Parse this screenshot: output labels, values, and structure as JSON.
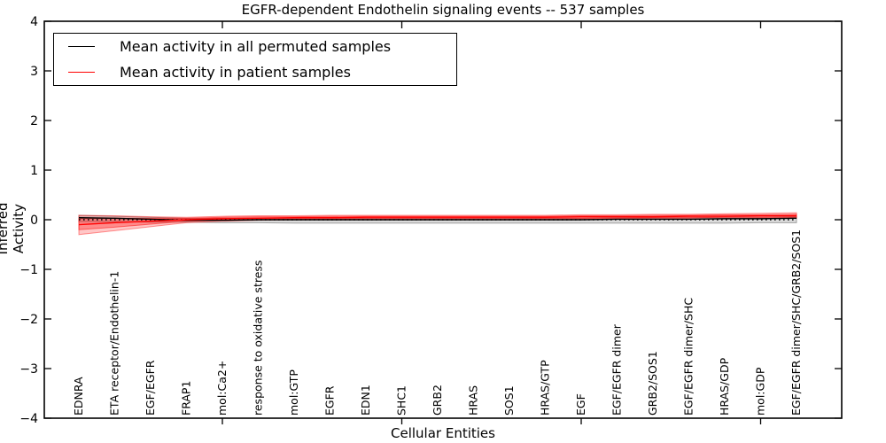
{
  "figure": {
    "title": "EGFR-dependent Endothelin signaling events -- 537 samples",
    "sample_count_shown_in_title": 537
  },
  "chart_data": {
    "type": "line",
    "title": "EGFR-dependent Endothelin signaling events -- 537 samples",
    "xlabel": "Cellular Entities",
    "ylabel": "Inferred Activity",
    "ylim": [
      -4,
      4
    ],
    "grid": false,
    "legend_position": "upper left",
    "ytick_values": [
      4,
      3,
      2,
      1,
      0,
      -1,
      -2,
      -3,
      -4
    ],
    "ytick_labels": [
      "4",
      "3",
      "2",
      "1",
      "0",
      "−1",
      "−2",
      "−3",
      "−4"
    ],
    "x_major_tick_indices": [
      4,
      9,
      14,
      19
    ],
    "categories": [
      "EDNRA",
      "ETA receptor/Endothelin-1",
      "EGF/EGFR",
      "FRAP1",
      "mol:Ca2+",
      "response to oxidative stress",
      "mol:GTP",
      "EGFR",
      "EDN1",
      "SHC1",
      "GRB2",
      "HRAS",
      "SOS1",
      "HRAS/GTP",
      "EGF",
      "EGF/EGFR dimer",
      "GRB2/SOS1",
      "EGF/EGFR dimer/SHC",
      "HRAS/GDP",
      "mol:GDP",
      "EGF/EGFR dimer/SHC/GRB2/SOS1"
    ],
    "series": [
      {
        "name": "Mean activity in all permuted samples",
        "color": "#000000",
        "values": [
          0.04,
          0.03,
          0.01,
          -0.01,
          -0.01,
          0.0,
          0.0,
          0.0,
          0.0,
          0.0,
          0.0,
          0.0,
          0.0,
          0.0,
          0.0,
          0.01,
          0.01,
          0.01,
          0.02,
          0.02,
          0.03
        ]
      },
      {
        "name": "Mean activity in patient samples",
        "color": "#ff0000",
        "values": [
          -0.1,
          -0.06,
          -0.03,
          0.0,
          0.02,
          0.03,
          0.04,
          0.04,
          0.05,
          0.05,
          0.05,
          0.05,
          0.05,
          0.05,
          0.06,
          0.06,
          0.06,
          0.07,
          0.07,
          0.08,
          0.08
        ]
      }
    ],
    "bands": [
      {
        "name": "permuted-samples-confidence",
        "color": "#000000",
        "opacity": 0.14,
        "upper": [
          0.09,
          0.07,
          0.05,
          0.03,
          0.03,
          0.03,
          0.03,
          0.03,
          0.03,
          0.03,
          0.03,
          0.03,
          0.03,
          0.03,
          0.03,
          0.04,
          0.04,
          0.04,
          0.05,
          0.05,
          0.06
        ],
        "lower": [
          -0.04,
          -0.04,
          -0.05,
          -0.05,
          -0.06,
          -0.06,
          -0.07,
          -0.07,
          -0.07,
          -0.07,
          -0.07,
          -0.07,
          -0.07,
          -0.07,
          -0.07,
          -0.07,
          -0.07,
          -0.07,
          -0.07,
          -0.06,
          -0.06
        ]
      },
      {
        "name": "patient-samples-confidence-outer",
        "color": "#ff0000",
        "opacity": 0.22,
        "upper": [
          0.09,
          0.08,
          0.06,
          0.05,
          0.07,
          0.08,
          0.08,
          0.09,
          0.09,
          0.09,
          0.09,
          0.09,
          0.09,
          0.09,
          0.1,
          0.1,
          0.11,
          0.11,
          0.12,
          0.13,
          0.14
        ],
        "lower": [
          -0.3,
          -0.22,
          -0.14,
          -0.06,
          -0.03,
          -0.01,
          0.0,
          0.0,
          0.0,
          0.0,
          0.0,
          0.0,
          0.0,
          0.01,
          0.01,
          0.01,
          0.02,
          0.02,
          0.02,
          0.03,
          0.03
        ]
      },
      {
        "name": "patient-samples-confidence-inner",
        "color": "#ff0000",
        "opacity": 0.3,
        "upper": [
          0.02,
          0.03,
          0.03,
          0.03,
          0.05,
          0.06,
          0.06,
          0.07,
          0.07,
          0.07,
          0.07,
          0.07,
          0.07,
          0.07,
          0.08,
          0.08,
          0.09,
          0.09,
          0.1,
          0.1,
          0.11
        ],
        "lower": [
          -0.2,
          -0.15,
          -0.09,
          -0.03,
          -0.01,
          0.0,
          0.01,
          0.01,
          0.02,
          0.02,
          0.02,
          0.02,
          0.02,
          0.03,
          0.03,
          0.03,
          0.04,
          0.04,
          0.05,
          0.05,
          0.05
        ]
      }
    ],
    "zero_line": {
      "value": 0,
      "style": "dotted",
      "color": "#000000"
    }
  }
}
